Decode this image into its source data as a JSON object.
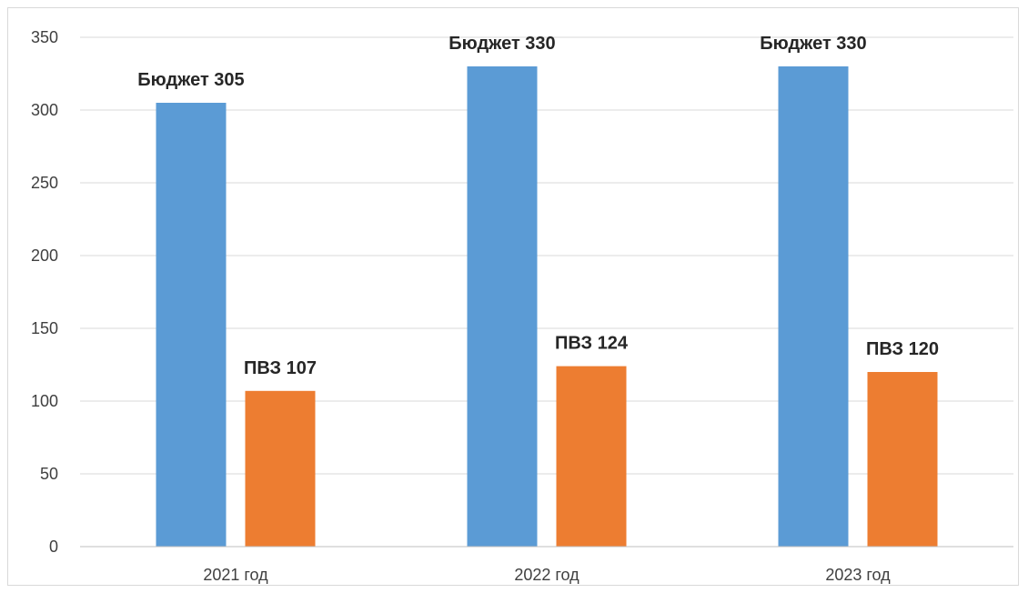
{
  "chart_data": {
    "type": "bar",
    "categories": [
      "2021 год",
      "2022 год",
      "2023 год"
    ],
    "series": [
      {
        "values": [
          305,
          330,
          330
        ],
        "color": "#5b9bd5",
        "labels": [
          "Бюджет 305",
          "Бюджет 330",
          "Бюджет 330"
        ]
      },
      {
        "values": [
          107,
          124,
          120
        ],
        "color": "#ed7d31",
        "labels": [
          "ПВЗ 107",
          "ПВЗ 124",
          "ПВЗ 120"
        ]
      }
    ],
    "ylim": [
      0,
      350
    ],
    "yticks": [
      0,
      50,
      100,
      150,
      200,
      250,
      300,
      350
    ],
    "grid": true,
    "legend": "none"
  }
}
